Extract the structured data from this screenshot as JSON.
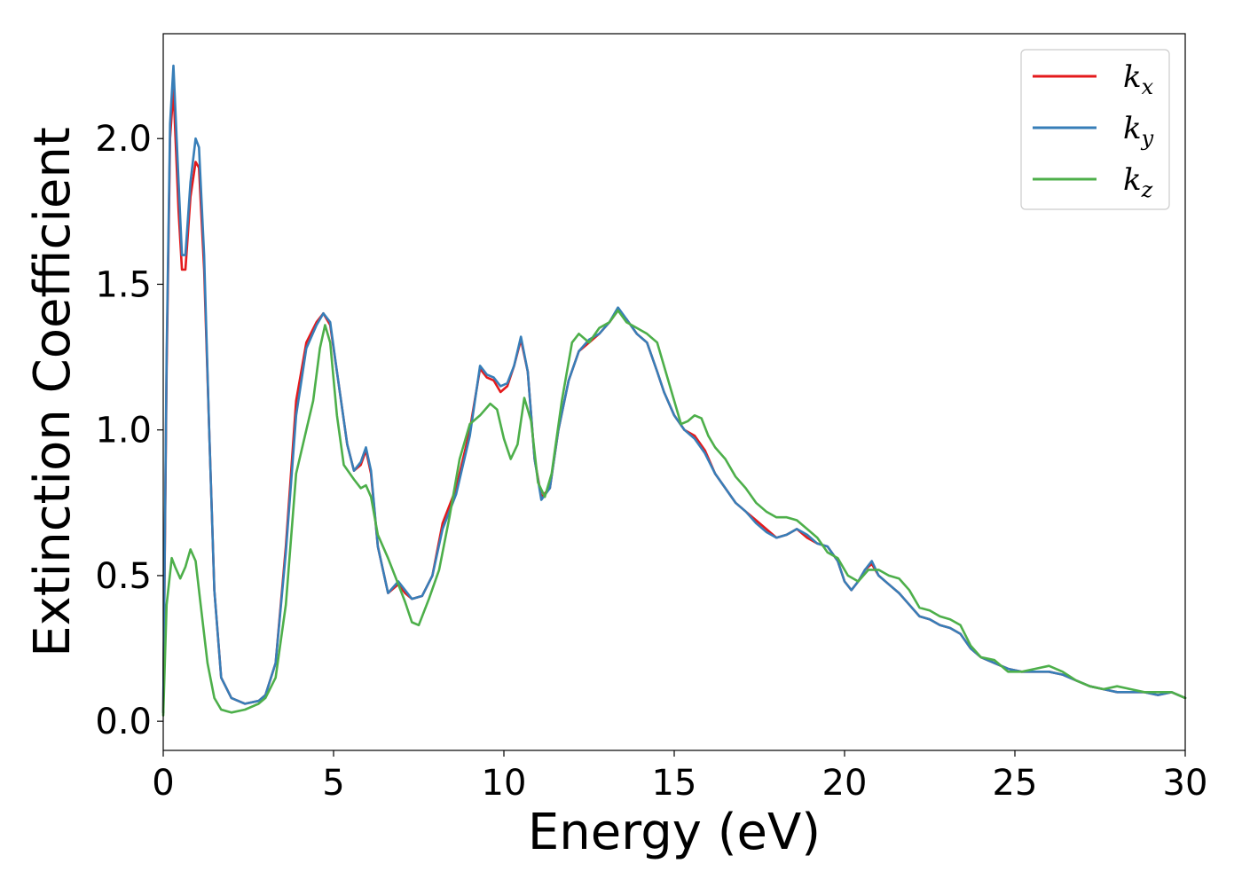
{
  "chart_data": {
    "type": "line",
    "xlabel": "Energy (eV)",
    "ylabel": "Extinction Coefficient",
    "xlim": [
      0,
      30
    ],
    "ylim": [
      -0.1,
      2.36
    ],
    "xticks": [
      0,
      5,
      10,
      15,
      20,
      25,
      30
    ],
    "xtick_labels": [
      "0",
      "5",
      "10",
      "15",
      "20",
      "25",
      "30"
    ],
    "yticks": [
      0.0,
      0.5,
      1.0,
      1.5,
      2.0
    ],
    "ytick_labels": [
      "0.0",
      "0.5",
      "1.0",
      "1.5",
      "2.0"
    ],
    "grid": false,
    "legend_position": "top-right",
    "series": [
      {
        "name": "k_x",
        "label_main": "k",
        "label_sub": "x",
        "color": "#e41a1c",
        "x": [
          0,
          0.1,
          0.2,
          0.3,
          0.45,
          0.55,
          0.65,
          0.8,
          0.95,
          1.05,
          1.2,
          1.35,
          1.5,
          1.7,
          2.0,
          2.4,
          2.8,
          3.0,
          3.3,
          3.6,
          3.9,
          4.2,
          4.5,
          4.7,
          4.9,
          5.1,
          5.4,
          5.6,
          5.8,
          5.95,
          6.1,
          6.3,
          6.6,
          6.9,
          7.1,
          7.3,
          7.6,
          7.9,
          8.2,
          8.6,
          9.0,
          9.3,
          9.5,
          9.7,
          9.9,
          10.1,
          10.3,
          10.5,
          10.7,
          10.9,
          11.1,
          11.35,
          11.6,
          11.9,
          12.2,
          12.5,
          12.8,
          13.1,
          13.35,
          13.6,
          13.9,
          14.2,
          14.5,
          14.7,
          15.0,
          15.3,
          15.6,
          15.9,
          16.2,
          16.5,
          16.8,
          17.1,
          17.4,
          17.7,
          18.0,
          18.3,
          18.6,
          18.9,
          19.2,
          19.5,
          19.8,
          20.0,
          20.2,
          20.4,
          20.6,
          20.8,
          21.0,
          21.3,
          21.6,
          21.9,
          22.2,
          22.5,
          22.8,
          23.1,
          23.4,
          23.7,
          24.0,
          24.4,
          24.8,
          25.2,
          25.6,
          26.0,
          26.4,
          26.8,
          27.2,
          27.6,
          28.0,
          28.4,
          28.8,
          29.2,
          29.6,
          30.0
        ],
        "y": [
          0.03,
          1.2,
          2.0,
          2.17,
          1.75,
          1.55,
          1.55,
          1.8,
          1.92,
          1.9,
          1.55,
          1.0,
          0.45,
          0.15,
          0.08,
          0.06,
          0.07,
          0.09,
          0.2,
          0.6,
          1.1,
          1.3,
          1.37,
          1.4,
          1.36,
          1.2,
          0.95,
          0.86,
          0.88,
          0.93,
          0.85,
          0.6,
          0.44,
          0.47,
          0.44,
          0.42,
          0.43,
          0.5,
          0.68,
          0.8,
          1.0,
          1.21,
          1.18,
          1.17,
          1.13,
          1.15,
          1.22,
          1.31,
          1.2,
          0.9,
          0.77,
          0.8,
          1.0,
          1.17,
          1.27,
          1.3,
          1.33,
          1.37,
          1.41,
          1.38,
          1.33,
          1.3,
          1.2,
          1.13,
          1.05,
          1.0,
          0.98,
          0.93,
          0.85,
          0.8,
          0.75,
          0.72,
          0.69,
          0.66,
          0.63,
          0.64,
          0.66,
          0.63,
          0.61,
          0.6,
          0.55,
          0.48,
          0.45,
          0.48,
          0.52,
          0.54,
          0.5,
          0.47,
          0.44,
          0.4,
          0.36,
          0.35,
          0.33,
          0.32,
          0.3,
          0.25,
          0.22,
          0.2,
          0.18,
          0.17,
          0.17,
          0.17,
          0.16,
          0.14,
          0.12,
          0.11,
          0.1,
          0.1,
          0.1,
          0.09,
          0.1,
          0.08
        ]
      },
      {
        "name": "k_y",
        "label_main": "k",
        "label_sub": "y",
        "color": "#377eb8",
        "x": [
          0,
          0.1,
          0.2,
          0.3,
          0.45,
          0.55,
          0.65,
          0.8,
          0.95,
          1.05,
          1.2,
          1.35,
          1.5,
          1.7,
          2.0,
          2.4,
          2.8,
          3.0,
          3.3,
          3.6,
          3.9,
          4.2,
          4.5,
          4.7,
          4.9,
          5.1,
          5.4,
          5.6,
          5.8,
          5.95,
          6.1,
          6.3,
          6.6,
          6.9,
          7.1,
          7.3,
          7.6,
          7.9,
          8.2,
          8.6,
          9.0,
          9.3,
          9.5,
          9.7,
          9.9,
          10.1,
          10.3,
          10.5,
          10.7,
          10.9,
          11.1,
          11.35,
          11.6,
          11.9,
          12.2,
          12.5,
          12.8,
          13.1,
          13.35,
          13.6,
          13.9,
          14.2,
          14.5,
          14.7,
          15.0,
          15.3,
          15.6,
          15.9,
          16.2,
          16.5,
          16.8,
          17.1,
          17.4,
          17.7,
          18.0,
          18.3,
          18.6,
          18.9,
          19.2,
          19.5,
          19.8,
          20.0,
          20.2,
          20.4,
          20.6,
          20.8,
          21.0,
          21.3,
          21.6,
          21.9,
          22.2,
          22.5,
          22.8,
          23.1,
          23.4,
          23.7,
          24.0,
          24.4,
          24.8,
          25.2,
          25.6,
          26.0,
          26.4,
          26.8,
          27.2,
          27.6,
          28.0,
          28.4,
          28.8,
          29.2,
          29.6,
          30.0
        ],
        "y": [
          0.03,
          1.25,
          2.05,
          2.25,
          1.85,
          1.6,
          1.6,
          1.85,
          2.0,
          1.97,
          1.6,
          1.0,
          0.45,
          0.15,
          0.08,
          0.06,
          0.07,
          0.09,
          0.2,
          0.58,
          1.05,
          1.28,
          1.36,
          1.4,
          1.37,
          1.2,
          0.95,
          0.86,
          0.89,
          0.94,
          0.86,
          0.6,
          0.44,
          0.48,
          0.45,
          0.42,
          0.43,
          0.5,
          0.66,
          0.78,
          0.98,
          1.22,
          1.19,
          1.18,
          1.15,
          1.16,
          1.22,
          1.32,
          1.2,
          0.9,
          0.76,
          0.8,
          1.0,
          1.17,
          1.27,
          1.31,
          1.33,
          1.37,
          1.42,
          1.38,
          1.33,
          1.3,
          1.2,
          1.13,
          1.05,
          1.0,
          0.97,
          0.92,
          0.85,
          0.8,
          0.75,
          0.72,
          0.68,
          0.65,
          0.63,
          0.64,
          0.66,
          0.64,
          0.61,
          0.6,
          0.55,
          0.48,
          0.45,
          0.48,
          0.52,
          0.55,
          0.5,
          0.47,
          0.44,
          0.4,
          0.36,
          0.35,
          0.33,
          0.32,
          0.3,
          0.25,
          0.22,
          0.2,
          0.18,
          0.17,
          0.17,
          0.17,
          0.16,
          0.14,
          0.12,
          0.11,
          0.1,
          0.1,
          0.1,
          0.09,
          0.1,
          0.08
        ]
      },
      {
        "name": "k_z",
        "label_main": "k",
        "label_sub": "z",
        "color": "#4daf4a",
        "x": [
          0,
          0.1,
          0.25,
          0.35,
          0.5,
          0.65,
          0.8,
          0.95,
          1.1,
          1.3,
          1.5,
          1.7,
          2.0,
          2.4,
          2.8,
          3.0,
          3.3,
          3.6,
          3.9,
          4.2,
          4.4,
          4.6,
          4.75,
          4.9,
          5.1,
          5.3,
          5.6,
          5.8,
          5.95,
          6.1,
          6.3,
          6.6,
          6.9,
          7.1,
          7.3,
          7.5,
          7.8,
          8.1,
          8.4,
          8.7,
          9.0,
          9.3,
          9.6,
          9.8,
          10.0,
          10.2,
          10.4,
          10.6,
          10.8,
          11.0,
          11.2,
          11.4,
          11.7,
          12.0,
          12.2,
          12.5,
          12.8,
          13.1,
          13.35,
          13.6,
          13.9,
          14.2,
          14.5,
          14.8,
          15.0,
          15.2,
          15.4,
          15.6,
          15.8,
          16.0,
          16.2,
          16.5,
          16.8,
          17.1,
          17.4,
          17.7,
          18.0,
          18.3,
          18.6,
          18.9,
          19.2,
          19.5,
          19.8,
          20.1,
          20.4,
          20.7,
          21.0,
          21.3,
          21.6,
          21.9,
          22.2,
          22.5,
          22.8,
          23.1,
          23.4,
          23.7,
          24.0,
          24.4,
          24.8,
          25.2,
          25.6,
          26.0,
          26.4,
          26.8,
          27.2,
          27.6,
          28.0,
          28.4,
          28.8,
          29.2,
          29.6,
          30.0
        ],
        "y": [
          0.02,
          0.4,
          0.56,
          0.53,
          0.49,
          0.53,
          0.59,
          0.55,
          0.4,
          0.2,
          0.08,
          0.04,
          0.03,
          0.04,
          0.06,
          0.08,
          0.15,
          0.4,
          0.85,
          1.0,
          1.1,
          1.28,
          1.36,
          1.3,
          1.05,
          0.88,
          0.83,
          0.8,
          0.81,
          0.77,
          0.64,
          0.56,
          0.47,
          0.41,
          0.34,
          0.33,
          0.42,
          0.52,
          0.7,
          0.9,
          1.02,
          1.05,
          1.09,
          1.07,
          0.97,
          0.9,
          0.95,
          1.11,
          1.03,
          0.82,
          0.77,
          0.85,
          1.1,
          1.3,
          1.33,
          1.3,
          1.35,
          1.37,
          1.41,
          1.37,
          1.35,
          1.33,
          1.3,
          1.18,
          1.1,
          1.02,
          1.03,
          1.05,
          1.04,
          0.98,
          0.94,
          0.9,
          0.84,
          0.8,
          0.75,
          0.72,
          0.7,
          0.7,
          0.69,
          0.66,
          0.63,
          0.58,
          0.56,
          0.5,
          0.48,
          0.52,
          0.52,
          0.5,
          0.49,
          0.45,
          0.39,
          0.38,
          0.36,
          0.35,
          0.33,
          0.26,
          0.22,
          0.21,
          0.17,
          0.17,
          0.18,
          0.19,
          0.17,
          0.14,
          0.12,
          0.11,
          0.12,
          0.11,
          0.1,
          0.1,
          0.1,
          0.08
        ]
      }
    ]
  }
}
